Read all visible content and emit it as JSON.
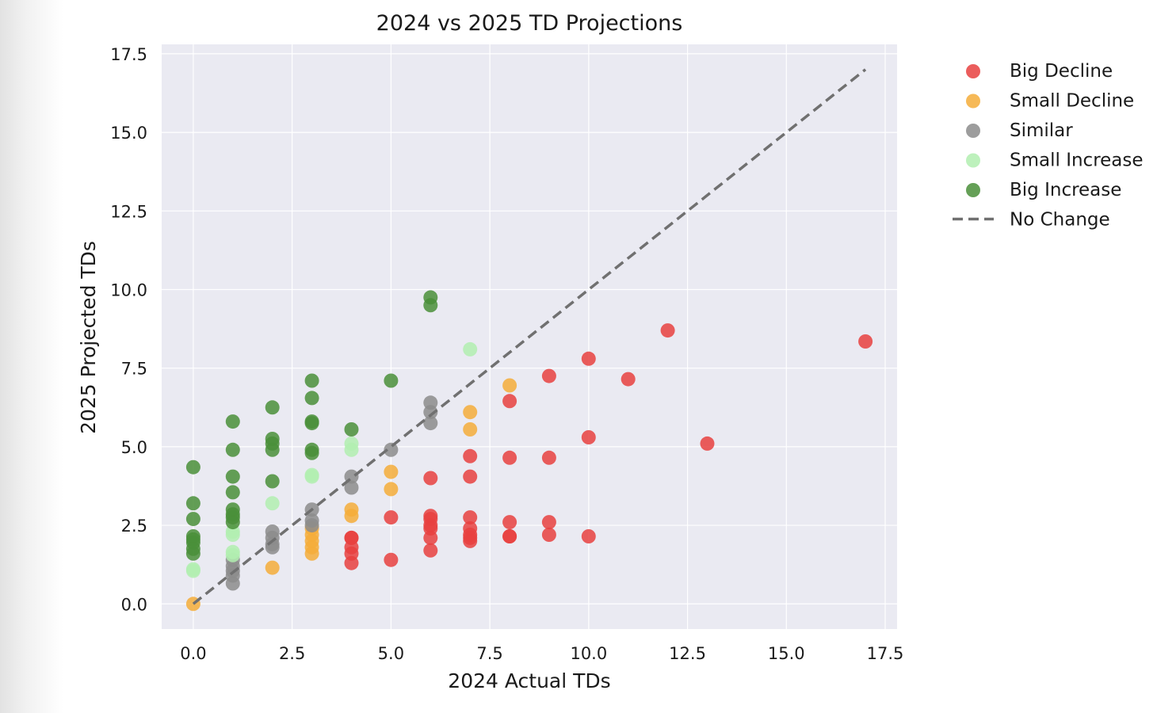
{
  "chart_data": {
    "type": "scatter",
    "title": "2024 vs 2025 TD Projections",
    "xlabel": "2024 Actual TDs",
    "ylabel": "2025 Projected TDs",
    "xlim": [
      -0.8,
      17.8
    ],
    "ylim": [
      -0.8,
      17.8
    ],
    "xticks": [
      "0.0",
      "2.5",
      "5.0",
      "7.5",
      "10.0",
      "12.5",
      "15.0",
      "17.5"
    ],
    "yticks": [
      "0.0",
      "2.5",
      "5.0",
      "7.5",
      "10.0",
      "12.5",
      "15.0",
      "17.5"
    ],
    "grid": true,
    "legend_position": "outside-right",
    "series": [
      {
        "name": "Big Decline",
        "color": "#e8413f",
        "points": [
          [
            17,
            8.35
          ],
          [
            12,
            8.7
          ],
          [
            13,
            5.1
          ],
          [
            11,
            7.15
          ],
          [
            10,
            7.8
          ],
          [
            10,
            5.3
          ],
          [
            10,
            2.15
          ],
          [
            9,
            7.25
          ],
          [
            9,
            4.65
          ],
          [
            9,
            2.6
          ],
          [
            9,
            2.2
          ],
          [
            8,
            6.45
          ],
          [
            8,
            4.65
          ],
          [
            8,
            2.6
          ],
          [
            8,
            2.15
          ],
          [
            8,
            2.15
          ],
          [
            7,
            4.7
          ],
          [
            7,
            4.05
          ],
          [
            7,
            2.75
          ],
          [
            7,
            2.4
          ],
          [
            7,
            2.2
          ],
          [
            7,
            2.1
          ],
          [
            7,
            2.0
          ],
          [
            6,
            4.0
          ],
          [
            6,
            2.8
          ],
          [
            6,
            2.7
          ],
          [
            6,
            2.5
          ],
          [
            6,
            2.4
          ],
          [
            6,
            2.1
          ],
          [
            6,
            1.7
          ],
          [
            5,
            2.75
          ],
          [
            5,
            1.4
          ],
          [
            4,
            2.1
          ],
          [
            4,
            2.1
          ],
          [
            4,
            1.8
          ],
          [
            4,
            1.6
          ],
          [
            4,
            1.3
          ]
        ]
      },
      {
        "name": "Small Decline",
        "color": "#f5ad3a",
        "points": [
          [
            8,
            6.95
          ],
          [
            7,
            6.1
          ],
          [
            7,
            5.55
          ],
          [
            5,
            4.2
          ],
          [
            5,
            3.65
          ],
          [
            4,
            3.0
          ],
          [
            4,
            2.8
          ],
          [
            3,
            2.4
          ],
          [
            3,
            2.2
          ],
          [
            3,
            2.0
          ],
          [
            3,
            1.8
          ],
          [
            3,
            1.6
          ],
          [
            2,
            1.15
          ],
          [
            0,
            0.0
          ]
        ]
      },
      {
        "name": "Similar",
        "color": "#8c8c8c",
        "points": [
          [
            6,
            6.4
          ],
          [
            6,
            6.1
          ],
          [
            6,
            5.75
          ],
          [
            5,
            4.9
          ],
          [
            4,
            4.05
          ],
          [
            4,
            3.7
          ],
          [
            3,
            3.0
          ],
          [
            3,
            2.65
          ],
          [
            3,
            2.5
          ],
          [
            2,
            2.3
          ],
          [
            2,
            2.1
          ],
          [
            2,
            1.9
          ],
          [
            2,
            1.8
          ],
          [
            1,
            1.4
          ],
          [
            1,
            1.2
          ],
          [
            1,
            1.05
          ],
          [
            1,
            0.9
          ],
          [
            1,
            0.65
          ]
        ]
      },
      {
        "name": "Small Increase",
        "color": "#b2eeb0",
        "points": [
          [
            7,
            8.1
          ],
          [
            4,
            5.1
          ],
          [
            4,
            4.9
          ],
          [
            3,
            4.1
          ],
          [
            3,
            4.05
          ],
          [
            2,
            3.2
          ],
          [
            1,
            2.3
          ],
          [
            1,
            2.2
          ],
          [
            1,
            1.65
          ],
          [
            1,
            1.55
          ],
          [
            0,
            1.1
          ],
          [
            0,
            1.05
          ]
        ]
      },
      {
        "name": "Big Increase",
        "color": "#4a8f3a",
        "points": [
          [
            6,
            9.75
          ],
          [
            6,
            9.5
          ],
          [
            5,
            7.1
          ],
          [
            4,
            5.55
          ],
          [
            3,
            7.1
          ],
          [
            3,
            6.55
          ],
          [
            3,
            5.8
          ],
          [
            3,
            5.75
          ],
          [
            3,
            4.9
          ],
          [
            3,
            4.8
          ],
          [
            2,
            6.25
          ],
          [
            2,
            5.25
          ],
          [
            2,
            5.1
          ],
          [
            2,
            4.9
          ],
          [
            2,
            3.9
          ],
          [
            1,
            5.8
          ],
          [
            1,
            4.9
          ],
          [
            1,
            4.05
          ],
          [
            1,
            3.55
          ],
          [
            1,
            3.0
          ],
          [
            1,
            2.85
          ],
          [
            1,
            2.75
          ],
          [
            1,
            2.6
          ],
          [
            0,
            4.35
          ],
          [
            0,
            3.2
          ],
          [
            0,
            2.7
          ],
          [
            0,
            2.15
          ],
          [
            0,
            2.05
          ],
          [
            0,
            1.95
          ],
          [
            0,
            1.75
          ],
          [
            0,
            1.6
          ]
        ]
      }
    ],
    "reference_line": {
      "name": "No Change",
      "color": "#707070",
      "style": "dashed",
      "from": [
        0,
        0
      ],
      "to": [
        17,
        17
      ]
    }
  }
}
